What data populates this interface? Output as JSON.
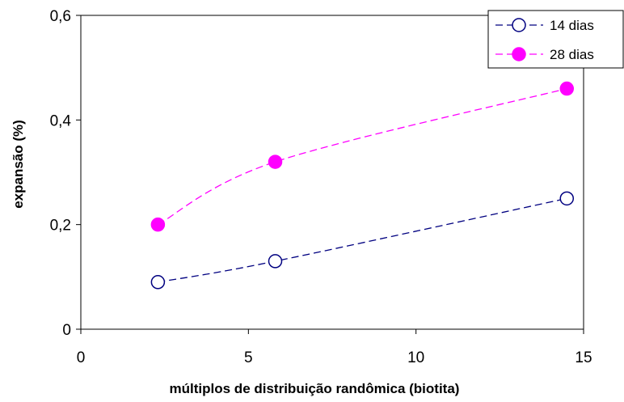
{
  "chart_data": {
    "type": "line",
    "xlabel": "múltiplos de distribuição randômica (biotita)",
    "ylabel": "expansão (%)",
    "xlim": [
      0,
      15
    ],
    "ylim": [
      0,
      0.6
    ],
    "x_ticks": [
      0,
      5,
      10,
      15
    ],
    "x_tick_labels": [
      "0",
      "5",
      "10",
      "15"
    ],
    "y_ticks": [
      0,
      0.2,
      0.4,
      0.6
    ],
    "y_tick_labels": [
      "0",
      "0,2",
      "0,4",
      "0,6"
    ],
    "grid": false,
    "legend_position": "top-right",
    "series": [
      {
        "name": "14 dias",
        "x": [
          2.3,
          5.8,
          14.5
        ],
        "values": [
          0.09,
          0.13,
          0.25
        ],
        "color": "#000080",
        "marker": "open-circle",
        "line": "dashed"
      },
      {
        "name": "28 dias",
        "x": [
          2.3,
          5.8,
          14.5
        ],
        "values": [
          0.2,
          0.32,
          0.46
        ],
        "color": "#ff00ff",
        "marker": "filled-circle",
        "line": "dashed"
      }
    ]
  }
}
